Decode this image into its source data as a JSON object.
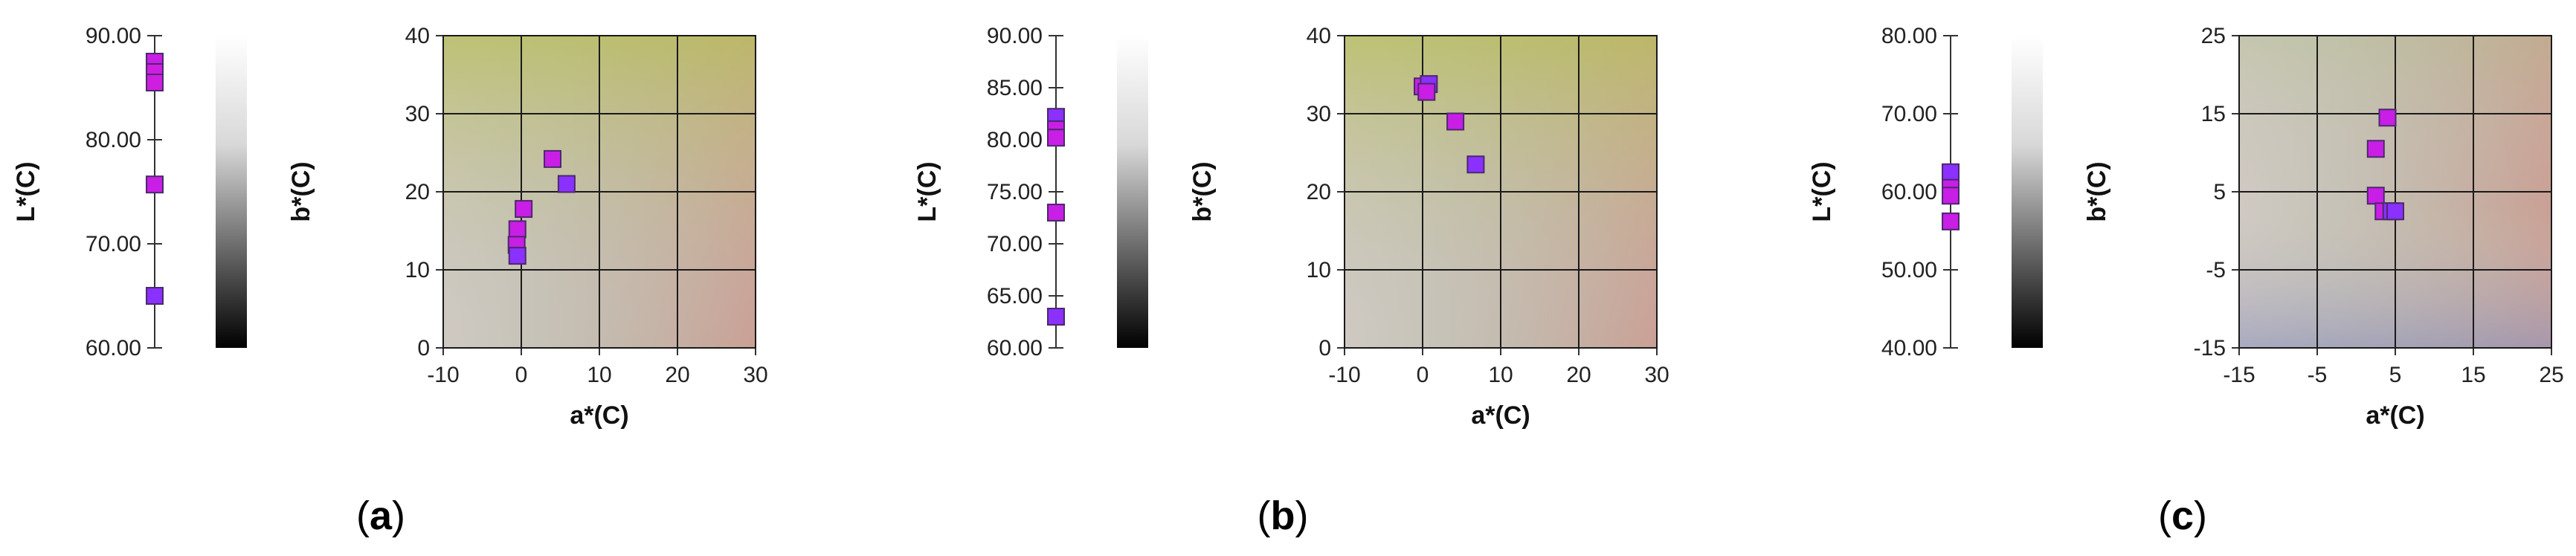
{
  "chart_data": [
    {
      "type": "scatter",
      "panel_label": "a",
      "L_axis": {
        "label": "L*(C)",
        "ticks": [
          "60.00",
          "70.00",
          "80.00",
          "90.00"
        ],
        "range": [
          60,
          90
        ]
      },
      "L_values": [
        87.5,
        86.5,
        85.5,
        75.7,
        65.0
      ],
      "L_point_colors": [
        "#c81ee6",
        "#d01ee0",
        "#d01ee0",
        "#c81ee6",
        "#8a30ff"
      ],
      "b_axis_bar_label": "b*(C)",
      "ab_plot": {
        "xlabel": "a*(C)",
        "ylabel": "",
        "xlim": [
          -10,
          30
        ],
        "ylim": [
          0,
          40
        ],
        "xticks": [
          "-10",
          "0",
          "10",
          "20",
          "30"
        ],
        "yticks": [
          "0",
          "10",
          "20",
          "30",
          "40"
        ],
        "grid": true,
        "points": [
          {
            "x": 4.0,
            "y": 24.2,
            "color": "#c81ee6"
          },
          {
            "x": 5.8,
            "y": 21.0,
            "color": "#8a30ff"
          },
          {
            "x": 0.3,
            "y": 17.8,
            "color": "#c81ee6"
          },
          {
            "x": -0.5,
            "y": 15.2,
            "color": "#c81ee6"
          },
          {
            "x": -0.6,
            "y": 13.2,
            "color": "#c81ee6"
          },
          {
            "x": -0.5,
            "y": 11.8,
            "color": "#8a30ff"
          }
        ]
      }
    },
    {
      "type": "scatter",
      "panel_label": "b",
      "L_axis": {
        "label": "L*(C)",
        "ticks": [
          "60.00",
          "65.00",
          "70.00",
          "75.00",
          "80.00",
          "85.00",
          "90.00"
        ],
        "range": [
          60,
          90
        ]
      },
      "L_values": [
        82.2,
        81.0,
        80.2,
        73.0,
        63.0
      ],
      "L_point_colors": [
        "#8a30ff",
        "#c81ee6",
        "#c81ee6",
        "#c81ee6",
        "#8a30ff"
      ],
      "b_axis_bar_label": "b*(C)",
      "ab_plot": {
        "xlabel": "a*(C)",
        "ylabel": "",
        "xlim": [
          -10,
          30
        ],
        "ylim": [
          0,
          40
        ],
        "xticks": [
          "-10",
          "0",
          "10",
          "20",
          "30"
        ],
        "yticks": [
          "0",
          "10",
          "20",
          "30",
          "40"
        ],
        "grid": true,
        "points": [
          {
            "x": 0.0,
            "y": 33.5,
            "color": "#c81ee6"
          },
          {
            "x": 0.8,
            "y": 33.8,
            "color": "#8a30ff"
          },
          {
            "x": 0.5,
            "y": 32.8,
            "color": "#c81ee6"
          },
          {
            "x": 4.2,
            "y": 29.0,
            "color": "#c81ee6"
          },
          {
            "x": 6.8,
            "y": 23.5,
            "color": "#8a30ff"
          }
        ]
      }
    },
    {
      "type": "scatter",
      "panel_label": "c",
      "L_axis": {
        "label": "L*(C)",
        "ticks": [
          "40.00",
          "50.00",
          "60.00",
          "70.00",
          "80.00"
        ],
        "range": [
          40,
          80
        ]
      },
      "L_values": [
        62.5,
        60.5,
        59.5,
        56.2
      ],
      "L_point_colors": [
        "#8a30ff",
        "#c81ee6",
        "#c81ee6",
        "#c81ee6"
      ],
      "b_axis_bar_label": "b*(C)",
      "ab_plot": {
        "xlabel": "a*(C)",
        "ylabel": "",
        "xlim": [
          -15,
          25
        ],
        "ylim": [
          -15,
          25
        ],
        "xticks": [
          "-15",
          "-5",
          "5",
          "15",
          "25"
        ],
        "yticks": [
          "-15",
          "-5",
          "5",
          "15",
          "25"
        ],
        "grid": true,
        "points": [
          {
            "x": 4.0,
            "y": 14.5,
            "color": "#c81ee6"
          },
          {
            "x": 2.5,
            "y": 10.5,
            "color": "#c81ee6"
          },
          {
            "x": 2.5,
            "y": 4.5,
            "color": "#c81ee6"
          },
          {
            "x": 3.5,
            "y": 2.5,
            "color": "#c81ee6"
          },
          {
            "x": 4.5,
            "y": 2.5,
            "color": "#8a30ff"
          },
          {
            "x": 5.0,
            "y": 2.5,
            "color": "#8a30ff"
          }
        ]
      }
    }
  ]
}
